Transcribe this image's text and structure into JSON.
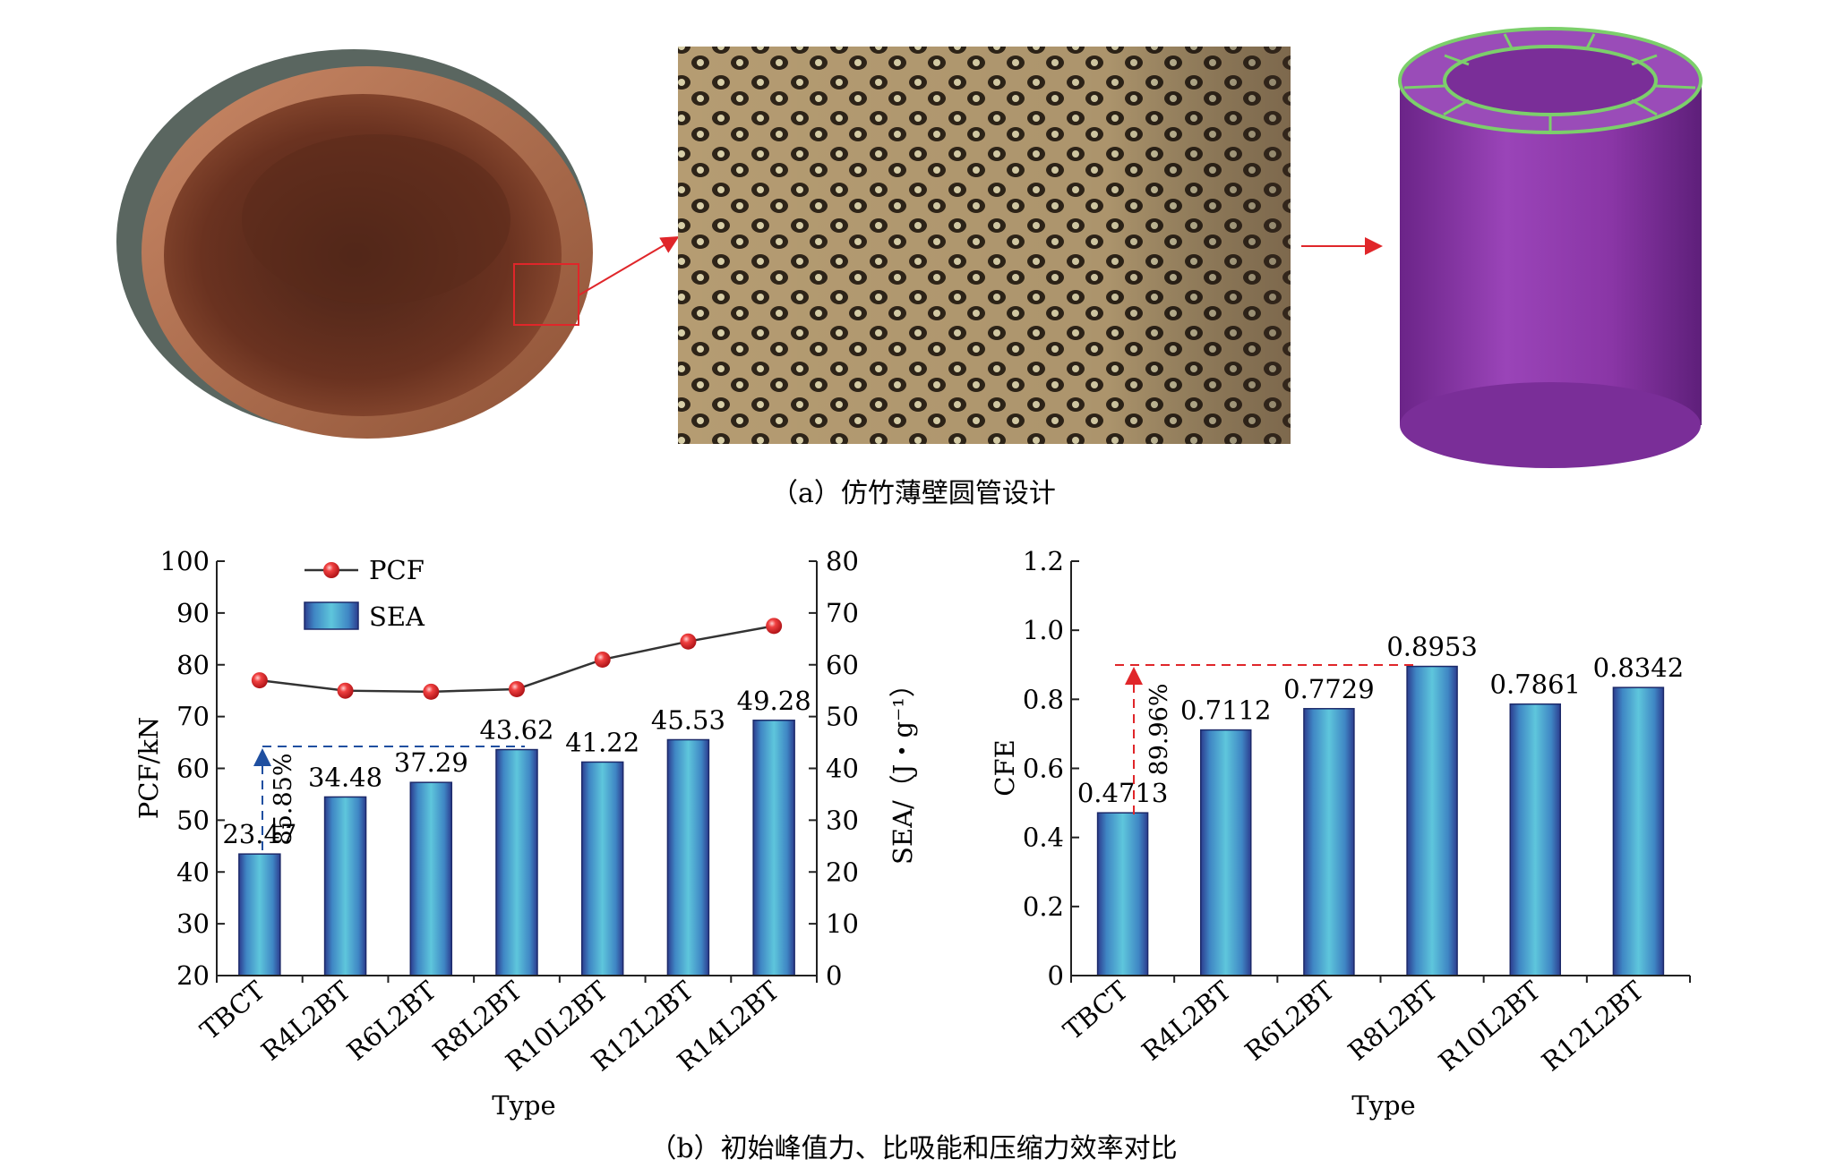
{
  "captions": {
    "a": "（a）仿竹薄壁圆管设计",
    "b": "（b）初始峰值力、比吸能和压缩力效率对比"
  },
  "colors": {
    "bar_mid": "#4fb8d6",
    "bar_edge": "#2c3d8f",
    "pcf_marker": "#e0262a",
    "pcf_line": "#333333",
    "blue_annotation": "#1f4fa0",
    "red_annotation": "#e0262a",
    "tube_purple": "#8a36a6",
    "tube_green": "#7ccf6b",
    "pointer_red": "#e0262a"
  },
  "panel_a_images": [
    "bamboo-cross-section-photo",
    "bamboo-microstructure-photo",
    "bionic-tube-model"
  ],
  "chart_data": [
    {
      "type": "bar+line",
      "xlabel": "Type",
      "ylabel_left": "PCF/kN",
      "ylabel_right": "SEA/（J・g⁻¹）",
      "left_ylim": [
        20,
        100
      ],
      "left_ticks": [
        "100",
        "90",
        "80",
        "70",
        "60",
        "50",
        "40",
        "30",
        "20"
      ],
      "right_ylim": [
        0,
        80
      ],
      "right_ticks": [
        "80",
        "70",
        "60",
        "50",
        "40",
        "30",
        "20",
        "10",
        "0"
      ],
      "categories": [
        "TBCT",
        "R4L2BT",
        "R6L2BT",
        "R8L2BT",
        "R10L2BT",
        "R12L2BT",
        "R14L2BT"
      ],
      "legend": [
        "PCF",
        "SEA"
      ],
      "legend_position": "top-left",
      "series": [
        {
          "name": "SEA",
          "axis": "right",
          "kind": "bar",
          "values": [
            23.47,
            34.48,
            37.29,
            43.62,
            41.22,
            45.53,
            49.28
          ],
          "labels": [
            "23.47",
            "34.48",
            "37.29",
            "43.62",
            "41.22",
            "45.53",
            "49.28"
          ]
        },
        {
          "name": "PCF",
          "axis": "left",
          "kind": "line",
          "values": [
            77,
            75,
            74.8,
            75.3,
            81,
            84.5,
            87.5
          ]
        }
      ],
      "annotation": "85.85%"
    },
    {
      "type": "bar",
      "xlabel": "Type",
      "ylabel": "CFE",
      "ylim": [
        0,
        1.2
      ],
      "ticks": [
        "1.2",
        "1.0",
        "0.8",
        "0.6",
        "0.4",
        "0.2",
        "0"
      ],
      "categories": [
        "TBCT",
        "R4L2BT",
        "R6L2BT",
        "R8L2BT",
        "R10L2BT",
        "R12L2BT"
      ],
      "values": [
        0.4713,
        0.7112,
        0.7729,
        0.8953,
        0.7861,
        0.8342
      ],
      "labels": [
        "0.4713",
        "0.7112",
        "0.7729",
        "0.8953",
        "0.7861",
        "0.8342"
      ],
      "annotation": "89.96%"
    }
  ]
}
